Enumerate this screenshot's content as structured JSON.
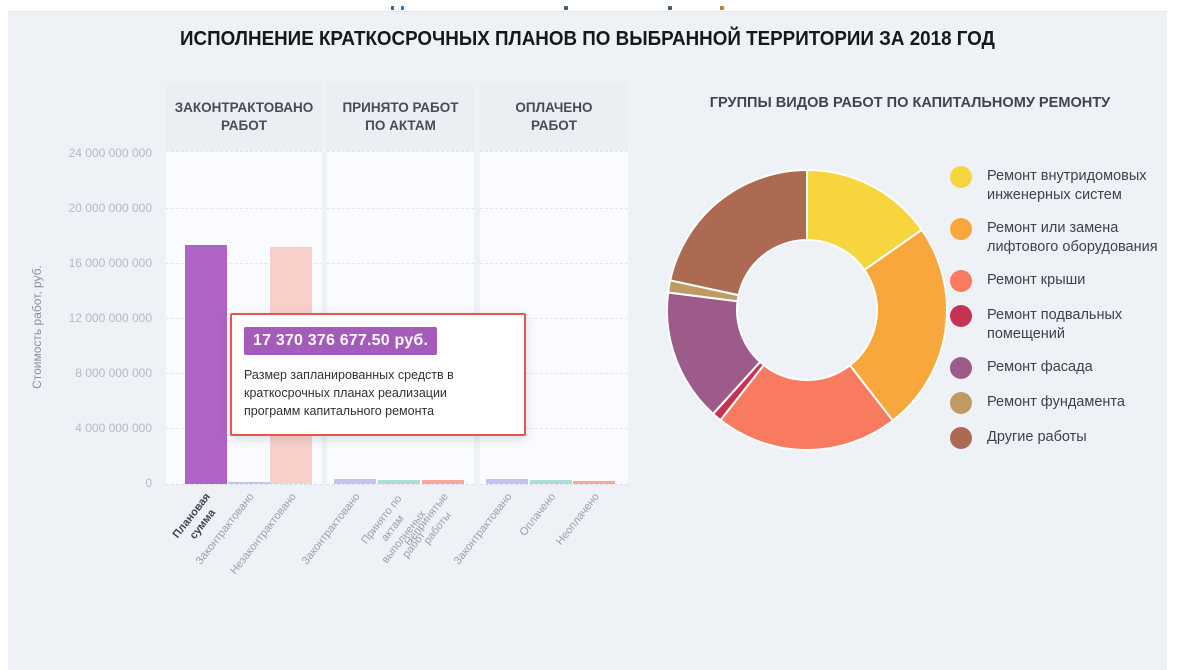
{
  "page": {
    "title": "ИСПОЛНЕНИЕ КРАТКОСРОЧНЫХ ПЛАНОВ ПО ВЫБРАННОЙ ТЕРРИТОРИИ ЗА 2018 ГОД"
  },
  "tooltip": {
    "value": "17 370 376 677.50 руб.",
    "description": "Размер запланированных средств в краткосрочных планах реализации программ капитального ремонта",
    "badge_color": "#a55bb9",
    "border_color": "#e8554c"
  },
  "chart_data": [
    {
      "type": "bar",
      "title": "",
      "xlabel": "",
      "ylabel": "Стоимость работ, руб.",
      "ylim": [
        0,
        24000000000
      ],
      "grid": true,
      "yticks": [
        {
          "label": "24 000 000 000",
          "value": 24000000000
        },
        {
          "label": "20 000 000 000",
          "value": 20000000000
        },
        {
          "label": "16 000 000 000",
          "value": 16000000000
        },
        {
          "label": "12 000 000 000",
          "value": 12000000000
        },
        {
          "label": "8 000 000 000",
          "value": 8000000000
        },
        {
          "label": "4 000 000 000",
          "value": 4000000000
        },
        {
          "label": "0",
          "value": 0
        }
      ],
      "groups": [
        {
          "header": "ЗАКОНТРАКТОВАНО\nРАБОТ",
          "bars": [
            {
              "label": "Плановая\nсумма",
              "value": 17370376677.5,
              "color": "#af63c5",
              "highlighted": true
            },
            {
              "label": "Законтрактовано",
              "value": 150000000,
              "color": "#c7c2ed",
              "highlighted": false
            },
            {
              "label": "Незаконтрактовано",
              "value": 17220000000,
              "color": "#f9cfca",
              "highlighted": false
            }
          ]
        },
        {
          "header": "ПРИНЯТО РАБОТ\nПО АКТАМ",
          "bars": [
            {
              "label": "Законтрактовано",
              "value": 350000000,
              "color": "#c7c2ed",
              "highlighted": false
            },
            {
              "label": "Принято по актам\nвыполненых работ",
              "value": 300000000,
              "color": "#a9dfd7",
              "highlighted": false
            },
            {
              "label": "Непринятые\nработы",
              "value": 260000000,
              "color": "#f8a896",
              "highlighted": false
            }
          ]
        },
        {
          "header": "ОПЛАЧЕНО\nРАБОТ",
          "bars": [
            {
              "label": "Законтрактовано",
              "value": 340000000,
              "color": "#c7c2ed",
              "highlighted": false
            },
            {
              "label": "Оплачено",
              "value": 290000000,
              "color": "#a9dfd7",
              "highlighted": false
            },
            {
              "label": "Неоплачено",
              "value": 240000000,
              "color": "#f8a896",
              "highlighted": false
            }
          ]
        }
      ]
    },
    {
      "type": "pie",
      "subtype": "donut",
      "title": "ГРУППЫ ВИДОВ РАБОТ ПО КАПИТАЛЬНОМУ РЕМОНТУ",
      "legend_position": "right",
      "inner_radius_ratio": 0.5,
      "start_angle_deg": 0,
      "segments": [
        {
          "label": "Ремонт внутридомовых инженерных систем",
          "percent": 15.3,
          "color": "#f6d53f"
        },
        {
          "label": "Ремонт или замена лифтового оборудования",
          "percent": 24.2,
          "color": "#f7a73c"
        },
        {
          "label": "Ремонт крыши",
          "percent": 21.1,
          "color": "#f87a5f"
        },
        {
          "label": "Ремонт подвальных помещений",
          "percent": 1.1,
          "color": "#c53352"
        },
        {
          "label": "Ремонт фасада",
          "percent": 15.3,
          "color": "#9c5b89"
        },
        {
          "label": "Ремонт фундамента",
          "percent": 1.4,
          "color": "#c19a62"
        },
        {
          "label": "Другие работы",
          "percent": 21.6,
          "color": "#ac6a53"
        }
      ]
    }
  ]
}
